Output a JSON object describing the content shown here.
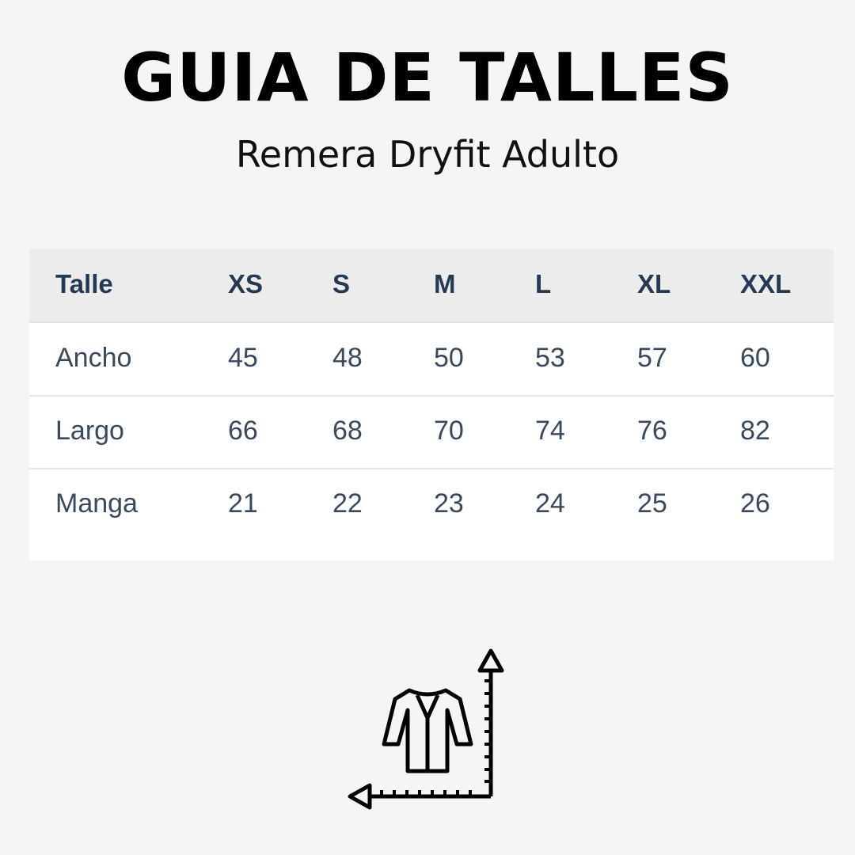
{
  "header": {
    "title": "GUIA DE TALLES",
    "subtitle": "Remera Dryfit Adulto"
  },
  "table": {
    "columns": [
      "Talle",
      "XS",
      "S",
      "M",
      "L",
      "XL",
      "XXL"
    ],
    "rows": [
      [
        "Ancho",
        "45",
        "48",
        "50",
        "53",
        "57",
        "60"
      ],
      [
        "Largo",
        "66",
        "68",
        "70",
        "74",
        "76",
        "82"
      ],
      [
        "Manga",
        "21",
        "22",
        "23",
        "24",
        "25",
        "26"
      ]
    ]
  },
  "icon": "garment-measurement-icon"
}
